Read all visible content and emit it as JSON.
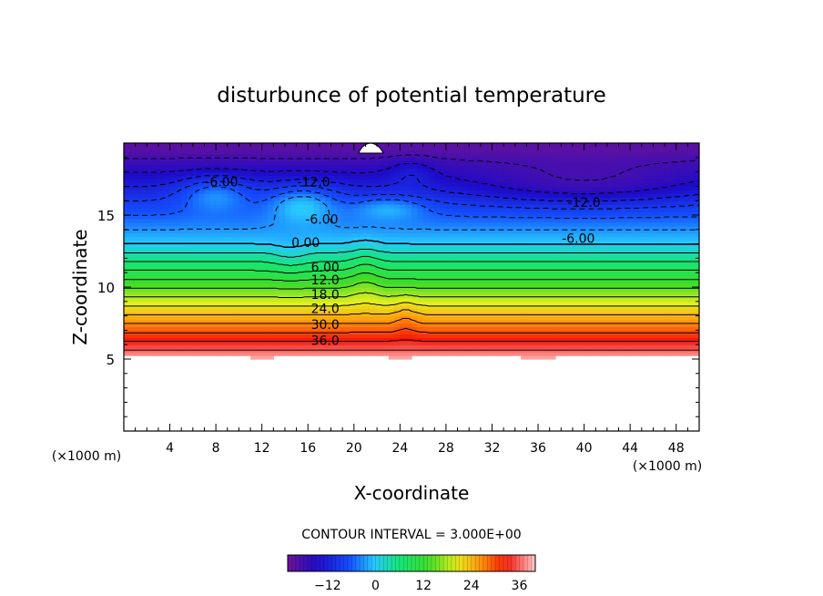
{
  "chart_data": {
    "type": "heatmap",
    "title": "disturbunce of potential temperature",
    "xlabel": "X-coordinate",
    "ylabel": "Z-coordinate",
    "x_unit": "(×1000 m)",
    "z_unit": "(×1000 m)",
    "xlim": [
      0,
      50
    ],
    "ylim": [
      0,
      20
    ],
    "x_ticks": [
      4,
      8,
      12,
      16,
      20,
      24,
      28,
      32,
      36,
      40,
      44,
      48
    ],
    "y_ticks": [
      5,
      10,
      15
    ],
    "contour_interval_text": "CONTOUR INTERVAL = 3.000E+00",
    "contour_interval": 3.0,
    "colorbar": {
      "ticks": [
        -12,
        0,
        12,
        24,
        36
      ],
      "range": [
        -22,
        40
      ]
    },
    "contour_labels": [
      {
        "text": "36.0",
        "x": 17.5,
        "z": 6.3,
        "value": 36
      },
      {
        "text": "30.0",
        "x": 17.5,
        "z": 7.4,
        "value": 30
      },
      {
        "text": "24.0",
        "x": 17.5,
        "z": 8.5,
        "value": 24
      },
      {
        "text": "18.0",
        "x": 17.5,
        "z": 9.5,
        "value": 18
      },
      {
        "text": "12.0",
        "x": 17.5,
        "z": 10.5,
        "value": 12
      },
      {
        "text": "6.00",
        "x": 17.5,
        "z": 11.4,
        "value": 6
      },
      {
        "text": "0.00",
        "x": 15.8,
        "z": 13.1,
        "value": 0
      },
      {
        "text": "-6.00",
        "x": 17.2,
        "z": 14.7,
        "value": -6
      },
      {
        "text": "-6.00",
        "x": 39.5,
        "z": 13.4,
        "value": -6
      },
      {
        "text": "-12.0",
        "x": 40.0,
        "z": 15.9,
        "value": -12
      },
      {
        "text": "-6.00",
        "x": 8.5,
        "z": 17.3,
        "value": -6
      },
      {
        "text": "-12.0",
        "x": 16.5,
        "z": 17.3,
        "value": -12
      }
    ],
    "field_description_levels": {
      "empty_below_z": 5.0,
      "value_at_bottom": 39,
      "zero_crossing_z": 13.0,
      "value_at_top": -20
    }
  }
}
